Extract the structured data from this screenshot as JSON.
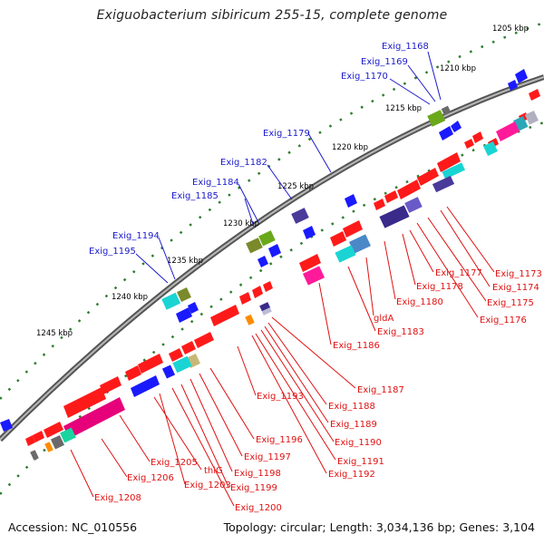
{
  "title": "Exiguobacterium sibiricum 255-15, complete genome",
  "footer": {
    "accession": "Accession: NC_010556",
    "summary": "Topology: circular; Length: 3,034,136 bp; Genes: 3,104"
  },
  "colors": {
    "backbone": "#8a8a8a",
    "tick_dots": "#2e7d2e",
    "forward_label": "#1a1acc",
    "reverse_label": "#e01010",
    "gene_red": "#ff1a1a",
    "gene_blue": "#1a1aff",
    "gene_purple": "#4a3a9a",
    "gene_green": "#6aa81a",
    "gene_olive": "#7a8a2a",
    "gene_cyan": "#1ad4d4",
    "gene_teal": "#2aa8b8",
    "gene_pink": "#ff1a9a",
    "gene_magenta": "#e6007a",
    "gene_orange": "#ff8c00",
    "gene_gray": "#6a6a6a"
  },
  "ticks": [
    "1205 kbp",
    "1210 kbp",
    "1215 kbp",
    "1220 kbp",
    "1225 kbp",
    "1230 kbp",
    "1235 kbp",
    "1240 kbp",
    "1245 kbp"
  ],
  "forward_labels": [
    "Exig_1168",
    "Exig_1169",
    "Exig_1170",
    "Exig_1179",
    "Exig_1182",
    "Exig_1184",
    "Exig_1185",
    "Exig_1194",
    "Exig_1195"
  ],
  "reverse_labels": [
    "Exig_1173",
    "Exig_1174",
    "Exig_1175",
    "Exig_1176",
    "Exig_1177",
    "Exig_1178",
    "Exig_1180",
    "gldA",
    "Exig_1183",
    "Exig_1186",
    "Exig_1187",
    "Exig_1188",
    "Exig_1189",
    "Exig_1190",
    "Exig_1191",
    "Exig_1192",
    "Exig_1193",
    "Exig_1196",
    "Exig_1197",
    "Exig_1198",
    "Exig_1199",
    "Exig_1200",
    "Exig_1203",
    "thiG",
    "Exig_1205",
    "Exig_1206",
    "Exig_1208"
  ]
}
